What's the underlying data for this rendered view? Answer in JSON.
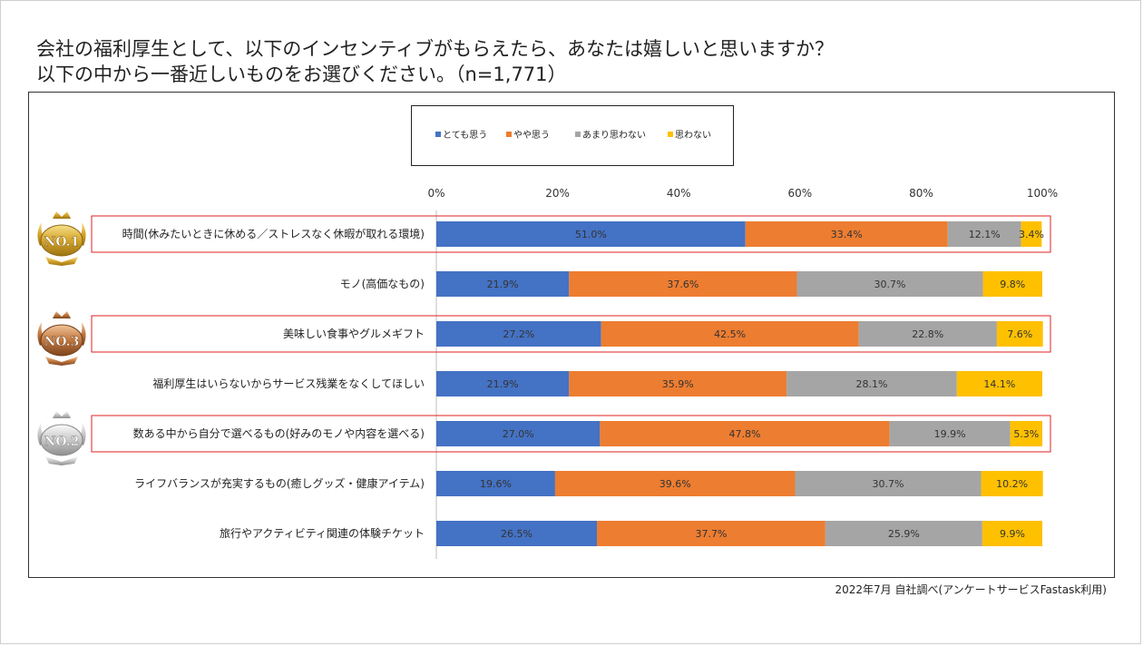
{
  "title_line1": "会社の福利厚生として、以下のインセンティブがもらえたら、あなたは嬉しいと思いますか？",
  "title_line2": "以下の中から一番近しいものをお選びください。（n=1,771）",
  "source": "2022年7月 自社調べ(アンケートサービスFastask利用)",
  "badges": [
    "NO.1",
    "NO.3",
    "NO.2"
  ],
  "colors": {
    "とても思う": "#4472C4",
    "やや思う": "#ED7D31",
    "あまり思わない": "#A5A5A5",
    "思わない": "#FFC000",
    "highlight": "#E02020"
  },
  "chart_data": {
    "type": "bar",
    "orientation": "horizontal-stacked-100",
    "x_ticks": [
      "0%",
      "20%",
      "40%",
      "60%",
      "80%",
      "100%"
    ],
    "xlim": [
      0,
      100
    ],
    "legend_position": "top",
    "categories": [
      "時間(休みたいときに休める／ストレスなく休暇が取れる環境)",
      "モノ(高価なもの)",
      "美味しい食事やグルメギフト",
      "福利厚生はいらないからサービス残業をなくしてほしい",
      "数ある中から自分で選べるもの(好みのモノや内容を選べる)",
      "ライフバランスが充実するもの(癒しグッズ・健康アイテム)",
      "旅行やアクティビティ関連の体験チケット"
    ],
    "highlighted_rows": [
      0,
      2,
      4
    ],
    "series": [
      {
        "name": "とても思う",
        "values": [
          51.0,
          21.9,
          27.2,
          21.9,
          27.0,
          19.6,
          26.5
        ],
        "labels": [
          "51.0%",
          "21.9%",
          "27.2%",
          "21.9%",
          "27.0%",
          "19.6%",
          "26.5%"
        ]
      },
      {
        "name": "やや思う",
        "values": [
          33.4,
          37.6,
          42.5,
          35.9,
          47.8,
          39.6,
          37.7
        ],
        "labels": [
          "33.4%",
          "37.6%",
          "42.5%",
          "35.9%",
          "47.8%",
          "39.6%",
          "37.7%"
        ]
      },
      {
        "name": "あまり思わない",
        "values": [
          12.1,
          30.7,
          22.8,
          28.1,
          19.9,
          30.7,
          25.9
        ],
        "labels": [
          "12.1%",
          "30.7%",
          "22.8%",
          "28.1%",
          "19.9%",
          "30.7%",
          "25.9%"
        ]
      },
      {
        "name": "思わない",
        "values": [
          3.4,
          9.8,
          7.6,
          14.1,
          5.3,
          10.2,
          9.9
        ],
        "labels": [
          "3.4%",
          "9.8%",
          "7.6%",
          "14.1%",
          "5.3%",
          "10.2%",
          "9.9%"
        ]
      }
    ]
  }
}
